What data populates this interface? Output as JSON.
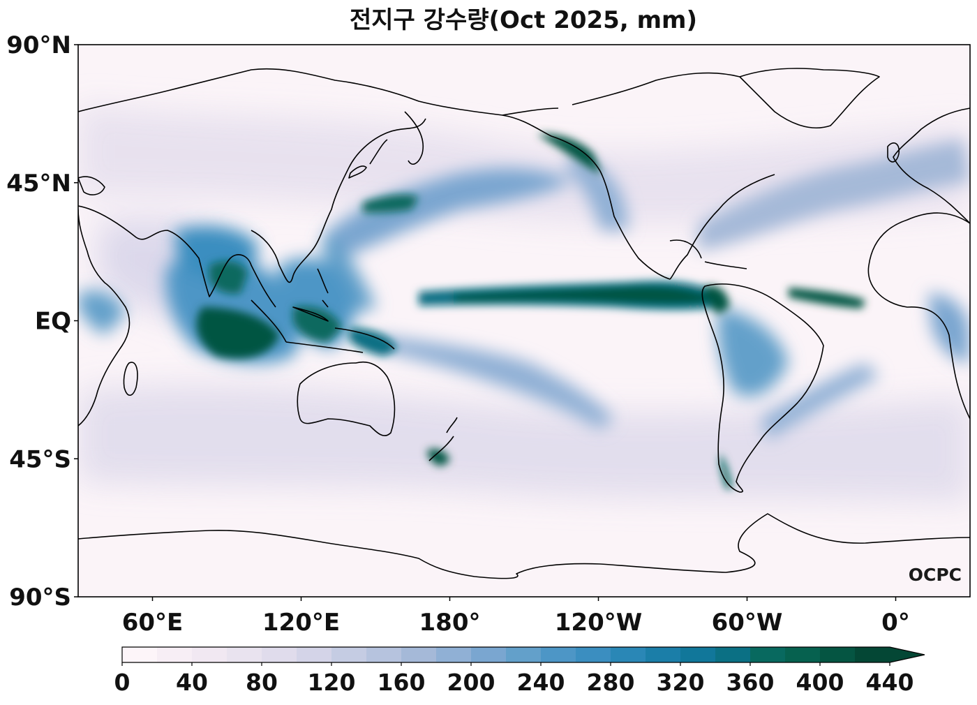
{
  "title": "전지구 강수량(Oct 2025, mm)",
  "logo": "OCPC",
  "map": {
    "projection": "equirectangular",
    "central_longitude": 0,
    "lon_range": [
      30,
      390
    ],
    "lat_range": [
      -90,
      90
    ],
    "lat_ticks": [
      {
        "value": 90,
        "label": "90°N"
      },
      {
        "value": 45,
        "label": "45°N"
      },
      {
        "value": 0,
        "label": "EQ"
      },
      {
        "value": -45,
        "label": "45°S"
      },
      {
        "value": -90,
        "label": "90°S"
      }
    ],
    "lon_ticks": [
      {
        "value": 60,
        "label": "60°E"
      },
      {
        "value": 120,
        "label": "120°E"
      },
      {
        "value": 180,
        "label": "180°"
      },
      {
        "value": 240,
        "label": "120°W"
      },
      {
        "value": 300,
        "label": "60°W"
      },
      {
        "value": 360,
        "label": "0°"
      }
    ]
  },
  "colorbar": {
    "levels": [
      0,
      20,
      40,
      60,
      80,
      100,
      120,
      140,
      160,
      180,
      200,
      220,
      240,
      260,
      280,
      300,
      320,
      340,
      360,
      380,
      400,
      420,
      440
    ],
    "tick_labels": [
      "0",
      "40",
      "80",
      "120",
      "160",
      "200",
      "240",
      "280",
      "320",
      "360",
      "400",
      "440"
    ],
    "colors": [
      "#fdf5f9",
      "#f7eef5",
      "#f1e8f2",
      "#e9e3ef",
      "#e0dcec",
      "#d4d4e8",
      "#c5cce3",
      "#b6c3de",
      "#a5b9d8",
      "#90b0d5",
      "#7aa6d0",
      "#63a0ca",
      "#4d96c6",
      "#3b8ec0",
      "#2a87b6",
      "#1b7ea8",
      "#11779a",
      "#0b7084",
      "#08695f",
      "#06614f",
      "#055542",
      "#044735"
    ],
    "extend": "max"
  }
}
